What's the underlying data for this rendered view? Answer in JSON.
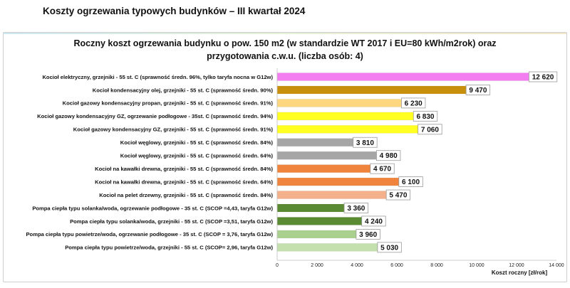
{
  "page": {
    "heading": "Koszty ogrzewania typowych budynków – III kwartał 2024"
  },
  "chart_data": {
    "type": "bar",
    "orientation": "horizontal",
    "title_line1": "Roczny koszt ogrzewania budynku  o pow. 150 m2 (w standardzie WT 2017 i EU=80 kWh/m2rok) oraz",
    "title_line2": "przygotowania c.w.u. (liczba osób: 4)",
    "xlabel": "Koszt roczny [zł/rok]",
    "ylabel": "",
    "xlim": [
      0,
      14000
    ],
    "xticks": [
      0,
      2000,
      4000,
      6000,
      8000,
      10000,
      12000,
      14000
    ],
    "xtick_labels": [
      "0",
      "2 000",
      "4 000",
      "6 000",
      "8 000",
      "10 000",
      "12 000",
      "14 000"
    ],
    "grid": false,
    "legend": "none",
    "categories": [
      "Kocioł  elektryczny,  grzejniki - 55 st. C  (sprawność średn. 96%, tylko taryfa nocna w G12w)",
      "Kocioł  kondensacyjny olej,  grzejniki - 55 st. C    (sprawność średn. 90%)",
      "Kocioł gazowy kondensacyjny propan, grzejniki - 55 st. C    (sprawność średn. 91%)",
      "Kocioł gazowy kondensacyjny GZ, ogrzewanie podłogowe - 35st. C    (sprawność średn. 94%)",
      "Kocioł gazowy kondensacyjny GZ, grzejniki - 55 st. C    (sprawność średn. 91%)",
      "Kocioł węglowy,  grzejniki - 55 st. C    (sprawność średn. 84%)",
      "Kocioł węglowy,  grzejniki - 55 st. C    (sprawność średn. 64%)",
      "Kocioł na kawałki drewna, grzejniki - 55 st. C  (sprawność średn. 84%)",
      "Kocioł na kawałki drewna, grzejniki - 55 st. C  (sprawność średn. 64%)",
      "Kocioł na pelet drzewny, grzejniki - 55 st. C  (sprawność średn. 84%)",
      "Pompa ciepła typu solanka/woda, ogrzewanie podłogowe - 35 st. C  (SCOP =4,43, taryfa G12w)",
      "Pompa ciepła typu solanka/woda, grzejniki - 55 st. C  (SCOP =3,51, taryfa G12w)",
      "Pompa ciepła typu powietrze/woda, ogrzewanie podłogowe - 35 st. C (SCOP = 3,76, taryfa G12w)",
      "Pompa ciepła typu powietrze/woda, grzejniki - 55 st. C (SCOP= 2,96, taryfa G12w)"
    ],
    "values": [
      12620,
      9470,
      6230,
      6830,
      7060,
      3810,
      4980,
      4670,
      6100,
      5470,
      3360,
      4240,
      3960,
      5030
    ],
    "value_labels": [
      "12 620",
      "9 470",
      "6 230",
      "6 830",
      "7 060",
      "3 810",
      "4 980",
      "4 670",
      "6 100",
      "5 470",
      "3 360",
      "4 240",
      "3 960",
      "5 030"
    ],
    "colors": [
      "#f27ef0",
      "#c8900a",
      "#fcd77e",
      "#ffff22",
      "#ffff22",
      "#a6a6a6",
      "#a6a6a6",
      "#f0843c",
      "#f0843c",
      "#f4b08a",
      "#5a8a32",
      "#5a8a32",
      "#a9d08e",
      "#c3e0ad"
    ]
  }
}
